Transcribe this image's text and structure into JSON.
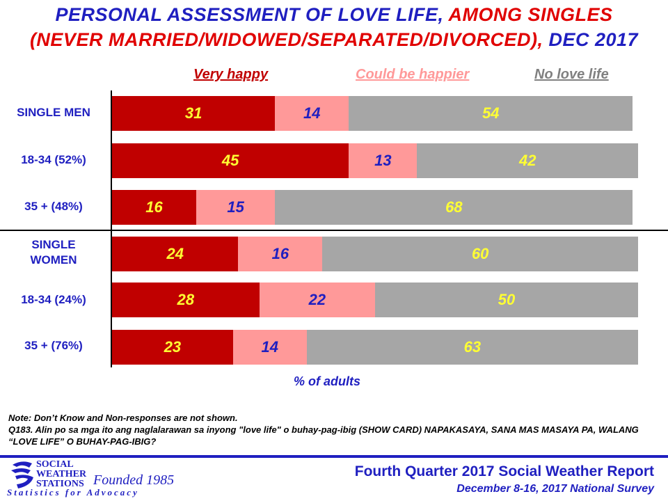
{
  "title": {
    "line1_part1": "PERSONAL ASSESSMENT OF LOVE LIFE,",
    "line1_part2": "AMONG SINGLES",
    "line2_part1": "(NEVER MARRIED/WIDOWED/SEPARATED/DIVORCED),",
    "line2_part2": "DEC 2017"
  },
  "chart_data": {
    "type": "bar",
    "orientation": "horizontal",
    "stacked": true,
    "categories": [
      "SINGLE MEN",
      "18-34 (52%)",
      "35 + (48%)",
      "SINGLE WOMEN",
      "18-34 (24%)",
      "35 + (76%)"
    ],
    "series": [
      {
        "name": "Very happy",
        "color": "#c00000",
        "label_color": "#ffff33",
        "values": [
          31,
          45,
          16,
          24,
          28,
          23
        ]
      },
      {
        "name": "Could be happier",
        "color": "#ff9999",
        "label_color": "#1f1fc0",
        "values": [
          14,
          13,
          15,
          16,
          22,
          14
        ]
      },
      {
        "name": "No love life",
        "color": "#a6a6a6",
        "label_color": "#ffff33",
        "values": [
          54,
          42,
          68,
          60,
          50,
          63
        ]
      }
    ],
    "xlabel": "% of adults",
    "xlim": [
      0,
      100
    ],
    "legend_position": "top"
  },
  "legend_colors": {
    "very_happy": "#c00000",
    "could_be_happier": "#ff9999",
    "no_love_life": "#808080"
  },
  "notes": {
    "note1": "Note: Don’t Know and Non-responses are not shown.",
    "note2": "Q183. Alin po sa mga ito ang naglalarawan sa inyong \"love life\" o buhay-pag-ibig  (SHOW CARD) NAPAKASAYA, SANA MAS MASAYA PA, WALANG “LOVE LIFE” O BUHAY-PAG-IBIG?"
  },
  "footer": {
    "logo_line1": "SOCIAL",
    "logo_line2": "WEATHER",
    "logo_line3": "STATIONS",
    "founded": "Founded 1985",
    "tagline": "Statistics for Advocacy",
    "report_title": "Fourth Quarter 2017 Social Weather Report",
    "report_subtitle": "December 8-16, 2017 National Survey"
  }
}
